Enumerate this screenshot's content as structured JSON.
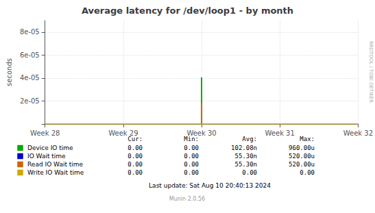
{
  "chart_data": {
    "type": "bar",
    "title": "Average latency for /dev/loop1 - by month",
    "ylabel": "seconds",
    "categories": [
      "Week 28",
      "Week 29",
      "Week 30",
      "Week 31",
      "Week 32"
    ],
    "series": [
      {
        "name": "Device IO time",
        "color": "#00aa00",
        "values": [
          null,
          null,
          4.05e-05,
          null,
          null
        ],
        "stats": [
          "0.00",
          "0.00",
          "102.08n",
          "960.00u"
        ]
      },
      {
        "name": "IO Wait time",
        "color": "#0000cc",
        "values": [
          null,
          null,
          null,
          null,
          null
        ],
        "stats": [
          "0.00",
          "0.00",
          "55.30n",
          "520.00u"
        ]
      },
      {
        "name": "Read IO Wait time",
        "color": "#cc6600",
        "values": [
          null,
          null,
          1.85e-05,
          null,
          null
        ],
        "stats": [
          "0.00",
          "0.00",
          "55.30n",
          "520.00u"
        ]
      },
      {
        "name": "Write IO Wait time",
        "color": "#ccaa00",
        "type": "line",
        "values": [
          0,
          0,
          0,
          0,
          0
        ],
        "stats": [
          "0.00",
          "0.00",
          "0.00",
          "0.00"
        ]
      }
    ],
    "stats_headers": [
      "Cur:",
      "Min:",
      "Avg:",
      "Max:"
    ],
    "ylim": [
      0,
      9e-05
    ],
    "yticks": [
      {
        "value": 0,
        "label": null
      },
      {
        "value": 2e-05,
        "label": "2e-05"
      },
      {
        "value": 4e-05,
        "label": "4e-05"
      },
      {
        "value": 6e-05,
        "label": "6e-05"
      },
      {
        "value": 8e-05,
        "label": "8e-05"
      }
    ],
    "grid": true,
    "annotations": [
      "Last update: Sat Aug 10 20:40:13 2024",
      "Munin 2.0.56",
      "RRDTOOL / TOBI OETIKER"
    ]
  }
}
